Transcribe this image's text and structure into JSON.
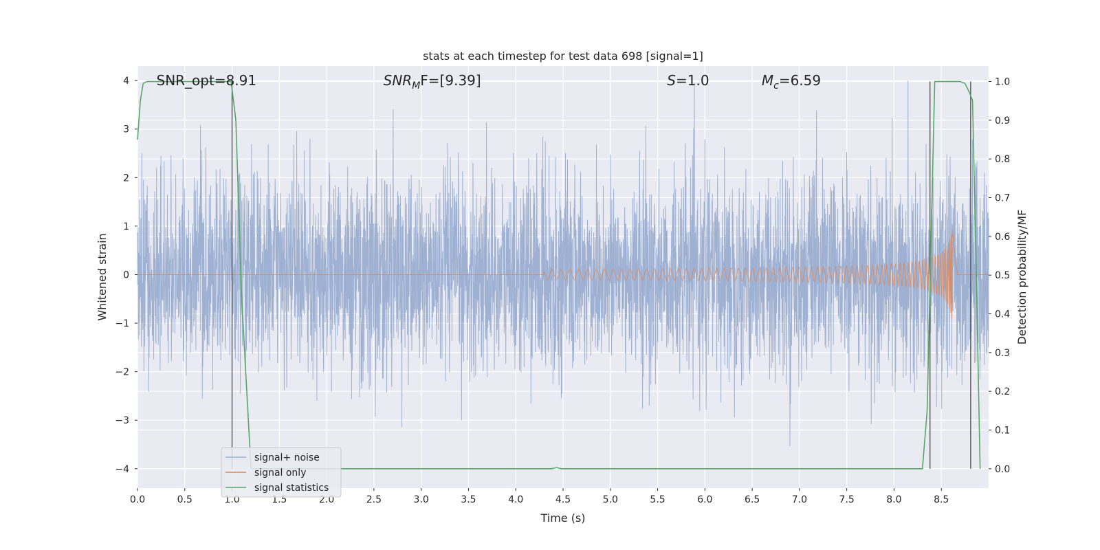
{
  "chart_data": {
    "type": "line",
    "title": "stats at each timestep for test data 698 [signal=1]",
    "xlabel": "Time (s)",
    "ylabel": "Whitened strain",
    "y2label": "Detection probability/MF",
    "xlim": [
      0.0,
      9.0
    ],
    "ylim": [
      -4.4,
      4.3
    ],
    "y2lim": [
      -0.05,
      1.04
    ],
    "xticks": [
      "0.0",
      "0.5",
      "1.0",
      "1.5",
      "2.0",
      "2.5",
      "3.0",
      "3.5",
      "4.0",
      "4.5",
      "5.0",
      "5.5",
      "6.0",
      "6.5",
      "7.0",
      "7.5",
      "8.0",
      "8.5"
    ],
    "yticks": [
      "4",
      "3",
      "2",
      "1",
      "0",
      "−1",
      "−2",
      "−3",
      "−4"
    ],
    "y2ticks": [
      "1.0",
      "0.9",
      "0.8",
      "0.7",
      "0.6",
      "0.5",
      "0.4",
      "0.3",
      "0.2",
      "0.1",
      "0.0"
    ],
    "grid": true,
    "legend_position": "lower-left",
    "annotations": [
      {
        "name": "snr-opt",
        "label": "SNR_opt=8.91",
        "x": 0.2,
        "y": 4.0
      },
      {
        "name": "snr-mf",
        "label_main": "SNR",
        "label_sub": "M",
        "label_rest": "F=[9.39]",
        "x": 2.6,
        "y": 4.0
      },
      {
        "name": "s-value",
        "label_main": "S",
        "label_rest": "=1.0",
        "x": 5.6,
        "y": 4.0
      },
      {
        "name": "chirp-mass",
        "label_main": "M",
        "label_sub": "c",
        "label_rest": "=6.59",
        "x": 6.6,
        "y": 4.0
      }
    ],
    "vlines": [
      1.0,
      8.38,
      8.81
    ],
    "series": [
      {
        "name": "signal+ noise",
        "color": "#9aaed0",
        "kind": "noise",
        "t_range": [
          0.0,
          9.0
        ],
        "samples": 4096,
        "sigma": 1.0,
        "clip": [
          -4.0,
          4.0
        ]
      },
      {
        "name": "signal only",
        "color": "#dd8452",
        "kind": "chirp",
        "t_start": 4.3,
        "t_merger": 8.62,
        "t_end": 8.67,
        "peak_amplitude": 1.05,
        "start_amplitude": 0.04
      },
      {
        "name": "signal statistics",
        "color": "#55a868",
        "axis": "right",
        "x": [
          0.0,
          0.03,
          0.06,
          0.1,
          0.5,
          0.99,
          1.04,
          1.1,
          1.2,
          2.0,
          3.0,
          4.0,
          4.38,
          4.43,
          4.48,
          5.0,
          6.0,
          7.0,
          8.0,
          8.3,
          8.35,
          8.43,
          8.5,
          8.6,
          8.7,
          8.75,
          8.8,
          8.83,
          8.87,
          8.91
        ],
        "y": [
          0.85,
          0.95,
          0.995,
          1.0,
          1.0,
          1.0,
          0.9,
          0.45,
          0.0,
          0.0,
          0.0,
          0.0,
          0.0,
          0.003,
          0.0,
          0.0,
          0.0,
          0.0,
          0.0,
          0.0,
          0.15,
          1.0,
          1.0,
          1.0,
          1.0,
          0.995,
          0.97,
          0.95,
          0.5,
          0.0
        ]
      }
    ]
  }
}
